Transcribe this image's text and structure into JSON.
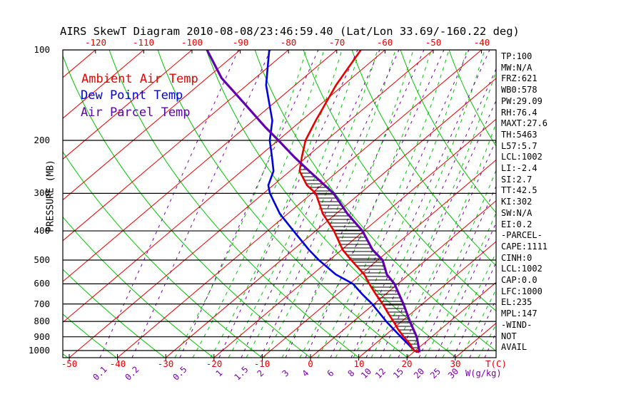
{
  "title": "AIRS SkewT Diagram 2010-08-08/23:46:59.40 (Lat/Lon 33.69/-160.22 deg)",
  "legend": {
    "ambient_label": "Ambient Air Temp",
    "dewpoint_label": "Dew Point Temp",
    "parcel_label": "Air Parcel Temp"
  },
  "axes": {
    "pressure_caption": "PRESSURE (MB)",
    "pressure_ticks": [
      100,
      200,
      300,
      400,
      500,
      600,
      700,
      800,
      900,
      1000
    ],
    "top_temp_ticks": [
      -120,
      -110,
      -100,
      -90,
      -80,
      -70,
      -60,
      -50,
      -40
    ],
    "bottom_temp_ticks": [
      -50,
      -40,
      -30,
      -20,
      -10,
      0,
      10,
      20,
      30
    ],
    "bottom_temp_unit": "T(C)",
    "mixing_ratio_ticks": [
      "0.1",
      "0.2",
      "0.5",
      "1",
      "1.5",
      "2",
      "3",
      "4",
      "6",
      "8",
      "10",
      "12",
      "15",
      "20",
      "25",
      "30"
    ],
    "mixing_ratio_unit": "W(g/kg)"
  },
  "stats": {
    "lines": [
      "TP:100",
      "MW:N/A",
      "FRZ:621",
      "WB0:578",
      "PW:29.09",
      "RH:76.4",
      "MAXT:27.6",
      "TH:5463",
      "L57:5.7",
      "LCL:1002",
      "LI:-2.4",
      "SI:2.7",
      "TT:42.5",
      "KI:302",
      "SW:N/A",
      "EI:0.2",
      "-PARCEL-",
      "CAPE:1111",
      "CINH:0",
      "LCL:1002",
      "CAP:0.0",
      "LFC:1000",
      "EL:235",
      "MPL:147",
      "-WIND-",
      "NOT",
      "AVAIL"
    ]
  },
  "colors": {
    "background": "#ffffff",
    "frame": "#000000",
    "pressure_line": "#000000",
    "isotherm": "#e80000",
    "dry_adiabat": "#00c400",
    "moist_adiabat": "#00c400",
    "mixing_ratio": "#7a00aa",
    "ambient": "#e80000",
    "dewpoint": "#0000dd",
    "parcel": "#6000b0",
    "hatch": "#000000",
    "label_red": "#e80000",
    "label_purple": "#7a00aa"
  },
  "chart_data": {
    "type": "line",
    "title": "AIRS SkewT Diagram 2010-08-08/23:46:59.40 (Lat/Lon 33.69/-160.22 deg)",
    "xlabel": "T(C)",
    "ylabel": "PRESSURE (MB)",
    "y_scale": "log",
    "ylim": [
      100,
      1056
    ],
    "x_bottom_range": [
      -55,
      38
    ],
    "skew_note": "isotherms skewed right with height; grid of dry adiabats (green solid), moist adiabats (green dashed), mixing-ratio lines (purple dashed)",
    "legend_position": "upper-left inside plot",
    "series": [
      {
        "name": "Ambient Air Temp",
        "color": "#e80000",
        "points_p_t": [
          [
            100,
            -65
          ],
          [
            131,
            -61.5
          ],
          [
            172,
            -57
          ],
          [
            200,
            -54.3
          ],
          [
            227,
            -51
          ],
          [
            253,
            -48
          ],
          [
            282,
            -43
          ],
          [
            300,
            -39.2
          ],
          [
            351,
            -32.7
          ],
          [
            400,
            -26.2
          ],
          [
            462,
            -19.8
          ],
          [
            500,
            -15.5
          ],
          [
            558,
            -9.3
          ],
          [
            600,
            -5.9
          ],
          [
            650,
            -2.0
          ],
          [
            700,
            1.8
          ],
          [
            750,
            5.1
          ],
          [
            800,
            8.3
          ],
          [
            850,
            11.2
          ],
          [
            900,
            14.2
          ],
          [
            950,
            17.2
          ],
          [
            1000,
            19.7
          ],
          [
            1013,
            21.2
          ]
        ]
      },
      {
        "name": "Dew Point Temp",
        "color": "#0000dd",
        "points_p_t": [
          [
            100,
            -84
          ],
          [
            131,
            -76
          ],
          [
            172,
            -66
          ],
          [
            200,
            -61.7
          ],
          [
            227,
            -57.2
          ],
          [
            253,
            -53.4
          ],
          [
            282,
            -51
          ],
          [
            300,
            -48.7
          ],
          [
            351,
            -41.6
          ],
          [
            400,
            -34.6
          ],
          [
            462,
            -26.8
          ],
          [
            500,
            -22.2
          ],
          [
            558,
            -15.2
          ],
          [
            600,
            -9.3
          ],
          [
            650,
            -4.8
          ],
          [
            700,
            -0.4
          ],
          [
            800,
            6.8
          ],
          [
            900,
            13.6
          ],
          [
            1000,
            19.8
          ],
          [
            1013,
            20.8
          ]
        ]
      },
      {
        "name": "Air Parcel Temp",
        "color": "#6000b0",
        "points_p_t": [
          [
            100,
            -96.9
          ],
          [
            124,
            -87
          ],
          [
            150,
            -76.3
          ],
          [
            180,
            -66.1
          ],
          [
            200,
            -59.9
          ],
          [
            227,
            -52.6
          ],
          [
            253,
            -46
          ],
          [
            300,
            -35.5
          ],
          [
            351,
            -27.6
          ],
          [
            400,
            -20.3
          ],
          [
            462,
            -13.6
          ],
          [
            500,
            -9.0
          ],
          [
            558,
            -4.6
          ],
          [
            600,
            -0.7
          ],
          [
            700,
            6.1
          ],
          [
            800,
            11.7
          ],
          [
            900,
            16.9
          ],
          [
            1000,
            20.8
          ],
          [
            1013,
            21.2
          ]
        ]
      }
    ],
    "cape_hatch": {
      "between": [
        "Ambient Air Temp",
        "Air Parcel Temp"
      ],
      "pressure_range": [
        240,
        1005
      ]
    }
  }
}
